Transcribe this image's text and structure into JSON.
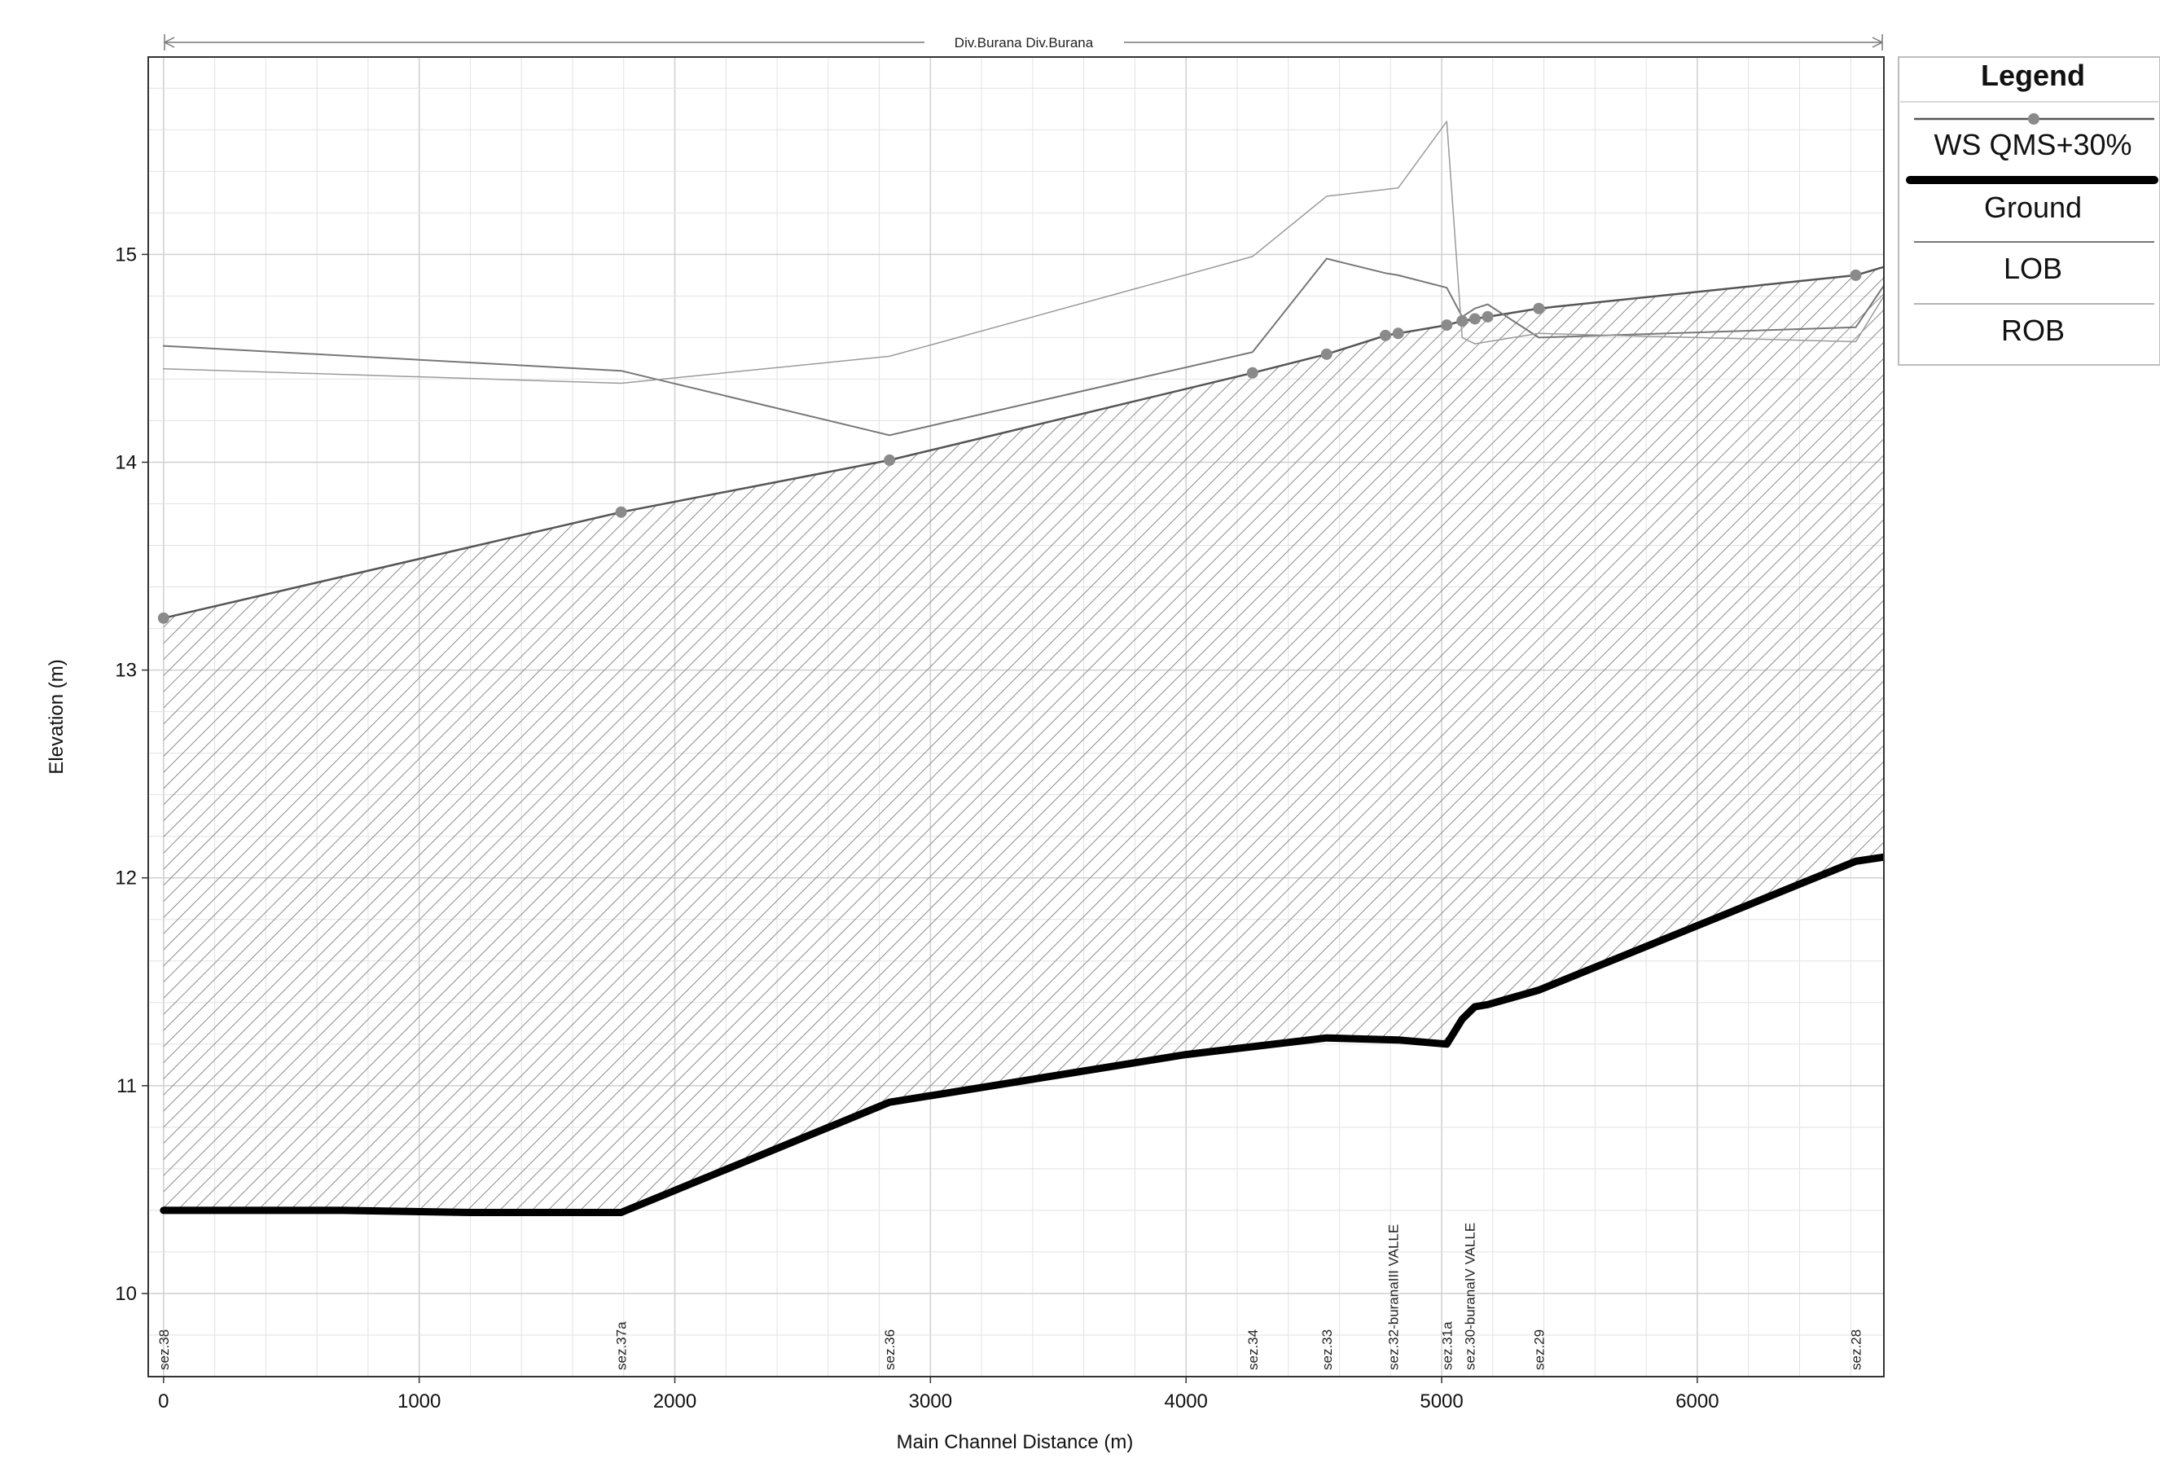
{
  "chart_data": {
    "type": "line",
    "title": "Div.Burana Div.Burana",
    "xlabel": "Main Channel Distance (m)",
    "ylabel": "Elevation (m)",
    "xlim": [
      -60,
      6730
    ],
    "ylim": [
      9.6,
      15.95
    ],
    "x_ticks": [
      0,
      1000,
      2000,
      3000,
      4000,
      5000,
      6000
    ],
    "y_ticks": [
      10,
      11,
      12,
      13,
      14,
      15
    ],
    "grid": true,
    "legend": {
      "title": "Legend",
      "placement": "right-top",
      "entries": [
        "WS  QMS+30%",
        "Ground",
        "LOB",
        "ROB"
      ]
    },
    "series": [
      {
        "name": "WS  QMS+30%",
        "x": [
          0,
          1790,
          2840,
          4260,
          4550,
          4780,
          4830,
          5020,
          5080,
          5130,
          5180,
          5380,
          6620,
          6730
        ],
        "y": [
          13.25,
          13.76,
          14.01,
          14.43,
          14.52,
          14.61,
          14.62,
          14.66,
          14.68,
          14.69,
          14.7,
          14.74,
          14.9,
          14.94
        ]
      },
      {
        "name": "Ground",
        "x": [
          0,
          300,
          700,
          1200,
          1600,
          1790,
          2840,
          4000,
          4550,
          4830,
          5020,
          5080,
          5130,
          5180,
          5380,
          6620,
          6730
        ],
        "y": [
          10.4,
          10.4,
          10.4,
          10.39,
          10.39,
          10.39,
          10.92,
          11.15,
          11.23,
          11.22,
          11.2,
          11.32,
          11.38,
          11.39,
          11.46,
          12.08,
          12.1
        ]
      },
      {
        "name": "LOB",
        "x": [
          0,
          1790,
          2840,
          4260,
          4550,
          4780,
          4830,
          5020,
          5080,
          5130,
          5180,
          5380,
          6620,
          6730
        ],
        "y": [
          14.56,
          14.44,
          14.13,
          14.53,
          14.98,
          14.91,
          14.9,
          14.84,
          14.7,
          14.74,
          14.76,
          14.6,
          14.65,
          14.85
        ]
      },
      {
        "name": "ROB",
        "x": [
          0,
          1790,
          2840,
          4260,
          4550,
          4830,
          5020,
          5080,
          5130,
          5180,
          5380,
          6620,
          6730
        ],
        "y": [
          14.45,
          14.38,
          14.51,
          14.99,
          15.28,
          15.32,
          15.64,
          14.6,
          14.57,
          14.58,
          14.62,
          14.58,
          14.8
        ]
      }
    ],
    "sections": [
      {
        "label": "sez.38",
        "x": 0
      },
      {
        "label": "sez.37a",
        "x": 1790
      },
      {
        "label": "sez.36",
        "x": 2840
      },
      {
        "label": "sez.34",
        "x": 4260
      },
      {
        "label": "sez.33",
        "x": 4550
      },
      {
        "label": "sez.32-buranaIII VALLE",
        "x": 4810
      },
      {
        "label": "sez.31a",
        "x": 5020
      },
      {
        "label": "sez.30-buranaIV VALLE",
        "x": 5110
      },
      {
        "label": "sez.29",
        "x": 5380
      },
      {
        "label": "sez.28",
        "x": 6620
      }
    ],
    "colors": {
      "ws": "#555555",
      "ws_marker": "#8a8a8a",
      "ground": "#000000",
      "lob": "#777777",
      "rob": "#9a9a9a",
      "grid": "#d9d9d9",
      "hatch": "#888888"
    }
  }
}
